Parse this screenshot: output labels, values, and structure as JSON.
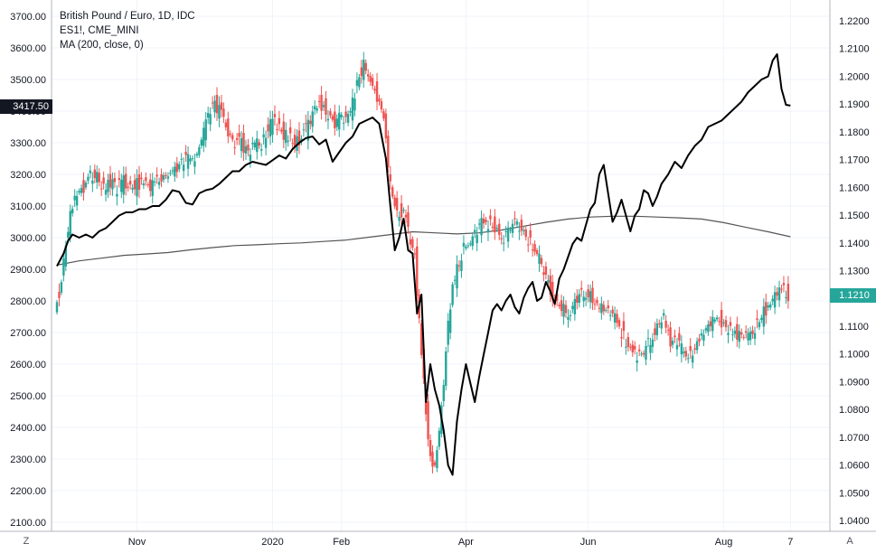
{
  "legend": {
    "title": "British Pound / Euro, 1D, IDC",
    "compare": "ES1!, CME_MINI",
    "indicator": "MA (200, close, 0)"
  },
  "buttons": {
    "zoom_label": "Z",
    "auto_label": "A"
  },
  "colors": {
    "up": "#26a69a",
    "down": "#ef5350",
    "compare_line": "#000000",
    "ma_line": "#555555",
    "grid": "#f0f3fa",
    "axis_text": "#131722"
  },
  "chart_data": {
    "type": "line",
    "title": "British Pound / Euro, 1D, IDC",
    "left_axis": {
      "label": "",
      "range": [
        2100,
        3700
      ],
      "ticks": [
        "3700.00",
        "3600.00",
        "3500.00",
        "3400.00",
        "3300.00",
        "3200.00",
        "3100.00",
        "3000.00",
        "2900.00",
        "2800.00",
        "2700.00",
        "2600.00",
        "2500.00",
        "2400.00",
        "2300.00",
        "2200.00",
        "2100.00"
      ],
      "last_value_label": "3417.50"
    },
    "right_axis": {
      "label": "",
      "range": [
        1.04,
        1.22
      ],
      "ticks": [
        "1.2200",
        "1.2100",
        "1.2000",
        "1.1900",
        "1.1800",
        "1.1700",
        "1.1600",
        "1.1500",
        "1.1400",
        "1.1300",
        "1.1200",
        "1.1100",
        "1.1000",
        "1.0900",
        "1.0800",
        "1.0700",
        "1.0600",
        "1.0500",
        "1.0400"
      ],
      "last_value_label": "1.1210"
    },
    "x_axis": {
      "labels": [
        "Nov",
        "2020",
        "Feb",
        "Apr",
        "Jun",
        "Aug",
        "7"
      ],
      "label_days": [
        36,
        97,
        128,
        184,
        239,
        300,
        330
      ],
      "day_range": [
        0,
        338
      ]
    },
    "grid": true,
    "series": [
      {
        "name": "British Pound / Euro, 1D, IDC",
        "kind": "candlestick",
        "axis": "right",
        "points": [
          [
            0,
            1.115
          ],
          [
            3,
            1.126
          ],
          [
            5,
            1.14
          ],
          [
            7,
            1.15
          ],
          [
            10,
            1.158
          ],
          [
            13,
            1.16
          ],
          [
            16,
            1.165
          ],
          [
            19,
            1.164
          ],
          [
            22,
            1.16
          ],
          [
            25,
            1.162
          ],
          [
            28,
            1.16
          ],
          [
            31,
            1.162
          ],
          [
            34,
            1.16
          ],
          [
            37,
            1.161
          ],
          [
            40,
            1.162
          ],
          [
            43,
            1.16
          ],
          [
            46,
            1.162
          ],
          [
            49,
            1.164
          ],
          [
            52,
            1.165
          ],
          [
            55,
            1.167
          ],
          [
            58,
            1.17
          ],
          [
            61,
            1.17
          ],
          [
            64,
            1.172
          ],
          [
            67,
            1.18
          ],
          [
            70,
            1.188
          ],
          [
            72,
            1.19
          ],
          [
            75,
            1.186
          ],
          [
            78,
            1.18
          ],
          [
            81,
            1.176
          ],
          [
            84,
            1.176
          ],
          [
            87,
            1.172
          ],
          [
            90,
            1.176
          ],
          [
            93,
            1.175
          ],
          [
            96,
            1.182
          ],
          [
            99,
            1.183
          ],
          [
            102,
            1.18
          ],
          [
            105,
            1.178
          ],
          [
            108,
            1.176
          ],
          [
            111,
            1.178
          ],
          [
            114,
            1.182
          ],
          [
            117,
            1.188
          ],
          [
            120,
            1.19
          ],
          [
            123,
            1.187
          ],
          [
            126,
            1.183
          ],
          [
            129,
            1.186
          ],
          [
            131,
            1.184
          ],
          [
            134,
            1.19
          ],
          [
            137,
            1.2
          ],
          [
            139,
            1.204
          ],
          [
            141,
            1.201
          ],
          [
            143,
            1.196
          ],
          [
            145,
            1.193
          ],
          [
            148,
            1.185
          ],
          [
            151,
            1.16
          ],
          [
            154,
            1.15
          ],
          [
            157,
            1.152
          ],
          [
            159,
            1.144
          ],
          [
            162,
            1.135
          ],
          [
            165,
            1.1
          ],
          [
            167,
            1.08
          ],
          [
            169,
            1.062
          ],
          [
            171,
            1.06
          ],
          [
            173,
            1.072
          ],
          [
            175,
            1.09
          ],
          [
            177,
            1.11
          ],
          [
            179,
            1.125
          ],
          [
            181,
            1.13
          ],
          [
            184,
            1.138
          ],
          [
            187,
            1.14
          ],
          [
            190,
            1.145
          ],
          [
            193,
            1.148
          ],
          [
            196,
            1.147
          ],
          [
            199,
            1.145
          ],
          [
            202,
            1.142
          ],
          [
            205,
            1.145
          ],
          [
            208,
            1.148
          ],
          [
            211,
            1.144
          ],
          [
            214,
            1.14
          ],
          [
            217,
            1.136
          ],
          [
            220,
            1.13
          ],
          [
            223,
            1.123
          ],
          [
            226,
            1.118
          ],
          [
            229,
            1.116
          ],
          [
            232,
            1.115
          ],
          [
            235,
            1.12
          ],
          [
            238,
            1.122
          ],
          [
            241,
            1.121
          ],
          [
            244,
            1.118
          ],
          [
            247,
            1.116
          ],
          [
            250,
            1.115
          ],
          [
            253,
            1.112
          ],
          [
            256,
            1.106
          ],
          [
            259,
            1.102
          ],
          [
            262,
            1.1
          ],
          [
            265,
            1.1
          ],
          [
            268,
            1.105
          ],
          [
            271,
            1.11
          ],
          [
            274,
            1.114
          ],
          [
            277,
            1.104
          ],
          [
            280,
            1.105
          ],
          [
            283,
            1.1
          ],
          [
            286,
            1.099
          ],
          [
            289,
            1.104
          ],
          [
            292,
            1.108
          ],
          [
            295,
            1.111
          ],
          [
            298,
            1.113
          ],
          [
            301,
            1.111
          ],
          [
            304,
            1.109
          ],
          [
            307,
            1.107
          ],
          [
            310,
            1.106
          ],
          [
            313,
            1.107
          ],
          [
            316,
            1.11
          ],
          [
            319,
            1.115
          ],
          [
            322,
            1.118
          ],
          [
            325,
            1.122
          ],
          [
            328,
            1.123
          ],
          [
            330,
            1.121
          ]
        ]
      },
      {
        "name": "ES1!, CME_MINI",
        "kind": "line",
        "axis": "left",
        "points": [
          [
            0,
            2910
          ],
          [
            3,
            2950
          ],
          [
            5,
            2990
          ],
          [
            7,
            3010
          ],
          [
            10,
            3000
          ],
          [
            13,
            3010
          ],
          [
            16,
            3000
          ],
          [
            19,
            3020
          ],
          [
            22,
            3030
          ],
          [
            25,
            3050
          ],
          [
            28,
            3070
          ],
          [
            31,
            3080
          ],
          [
            34,
            3080
          ],
          [
            37,
            3090
          ],
          [
            40,
            3090
          ],
          [
            43,
            3100
          ],
          [
            46,
            3100
          ],
          [
            49,
            3120
          ],
          [
            52,
            3150
          ],
          [
            55,
            3145
          ],
          [
            58,
            3110
          ],
          [
            61,
            3105
          ],
          [
            64,
            3140
          ],
          [
            67,
            3150
          ],
          [
            70,
            3155
          ],
          [
            73,
            3170
          ],
          [
            76,
            3190
          ],
          [
            79,
            3210
          ],
          [
            82,
            3210
          ],
          [
            85,
            3230
          ],
          [
            88,
            3240
          ],
          [
            91,
            3235
          ],
          [
            94,
            3230
          ],
          [
            97,
            3245
          ],
          [
            100,
            3260
          ],
          [
            103,
            3250
          ],
          [
            106,
            3280
          ],
          [
            109,
            3300
          ],
          [
            112,
            3315
          ],
          [
            115,
            3320
          ],
          [
            118,
            3295
          ],
          [
            121,
            3310
          ],
          [
            124,
            3240
          ],
          [
            127,
            3270
          ],
          [
            130,
            3300
          ],
          [
            133,
            3320
          ],
          [
            136,
            3360
          ],
          [
            139,
            3370
          ],
          [
            142,
            3380
          ],
          [
            145,
            3360
          ],
          [
            148,
            3250
          ],
          [
            150,
            3100
          ],
          [
            152,
            2960
          ],
          [
            154,
            3000
          ],
          [
            156,
            3060
          ],
          [
            158,
            2960
          ],
          [
            160,
            2950
          ],
          [
            162,
            2760
          ],
          [
            164,
            2820
          ],
          [
            166,
            2480
          ],
          [
            168,
            2600
          ],
          [
            170,
            2520
          ],
          [
            172,
            2470
          ],
          [
            174,
            2390
          ],
          [
            176,
            2280
          ],
          [
            178,
            2250
          ],
          [
            180,
            2420
          ],
          [
            182,
            2520
          ],
          [
            184,
            2600
          ],
          [
            186,
            2540
          ],
          [
            188,
            2480
          ],
          [
            190,
            2560
          ],
          [
            192,
            2630
          ],
          [
            194,
            2700
          ],
          [
            196,
            2770
          ],
          [
            198,
            2790
          ],
          [
            200,
            2770
          ],
          [
            202,
            2800
          ],
          [
            204,
            2820
          ],
          [
            206,
            2780
          ],
          [
            208,
            2760
          ],
          [
            210,
            2810
          ],
          [
            212,
            2840
          ],
          [
            214,
            2860
          ],
          [
            216,
            2800
          ],
          [
            218,
            2810
          ],
          [
            220,
            2860
          ],
          [
            222,
            2830
          ],
          [
            224,
            2790
          ],
          [
            226,
            2870
          ],
          [
            228,
            2900
          ],
          [
            230,
            2940
          ],
          [
            232,
            2980
          ],
          [
            234,
            3000
          ],
          [
            236,
            2990
          ],
          [
            238,
            3040
          ],
          [
            240,
            3090
          ],
          [
            242,
            3110
          ],
          [
            244,
            3200
          ],
          [
            246,
            3230
          ],
          [
            248,
            3140
          ],
          [
            250,
            3050
          ],
          [
            252,
            3080
          ],
          [
            254,
            3120
          ],
          [
            256,
            3070
          ],
          [
            258,
            3020
          ],
          [
            260,
            3070
          ],
          [
            262,
            3090
          ],
          [
            264,
            3150
          ],
          [
            266,
            3140
          ],
          [
            268,
            3100
          ],
          [
            270,
            3130
          ],
          [
            272,
            3170
          ],
          [
            275,
            3200
          ],
          [
            278,
            3240
          ],
          [
            281,
            3220
          ],
          [
            284,
            3260
          ],
          [
            287,
            3290
          ],
          [
            290,
            3310
          ],
          [
            293,
            3350
          ],
          [
            296,
            3360
          ],
          [
            299,
            3370
          ],
          [
            302,
            3390
          ],
          [
            305,
            3410
          ],
          [
            308,
            3430
          ],
          [
            311,
            3460
          ],
          [
            314,
            3480
          ],
          [
            317,
            3500
          ],
          [
            320,
            3510
          ],
          [
            322,
            3560
          ],
          [
            324,
            3580
          ],
          [
            326,
            3470
          ],
          [
            328,
            3420
          ],
          [
            330,
            3417.5
          ]
        ]
      },
      {
        "name": "MA (200, close, 0)",
        "kind": "line",
        "axis": "right",
        "points": [
          [
            0,
            1.132
          ],
          [
            10,
            1.1335
          ],
          [
            20,
            1.1345
          ],
          [
            30,
            1.1355
          ],
          [
            40,
            1.136
          ],
          [
            50,
            1.1365
          ],
          [
            60,
            1.1375
          ],
          [
            70,
            1.1383
          ],
          [
            80,
            1.139
          ],
          [
            90,
            1.1393
          ],
          [
            100,
            1.1397
          ],
          [
            110,
            1.14
          ],
          [
            120,
            1.1405
          ],
          [
            130,
            1.141
          ],
          [
            140,
            1.142
          ],
          [
            150,
            1.143
          ],
          [
            160,
            1.144
          ],
          [
            170,
            1.1436
          ],
          [
            180,
            1.1432
          ],
          [
            190,
            1.1436
          ],
          [
            200,
            1.1446
          ],
          [
            210,
            1.146
          ],
          [
            220,
            1.1474
          ],
          [
            230,
            1.1486
          ],
          [
            240,
            1.1493
          ],
          [
            250,
            1.1496
          ],
          [
            260,
            1.1496
          ],
          [
            270,
            1.1493
          ],
          [
            280,
            1.149
          ],
          [
            290,
            1.1486
          ],
          [
            300,
            1.1473
          ],
          [
            310,
            1.1456
          ],
          [
            320,
            1.144
          ],
          [
            330,
            1.1422
          ]
        ]
      }
    ]
  }
}
